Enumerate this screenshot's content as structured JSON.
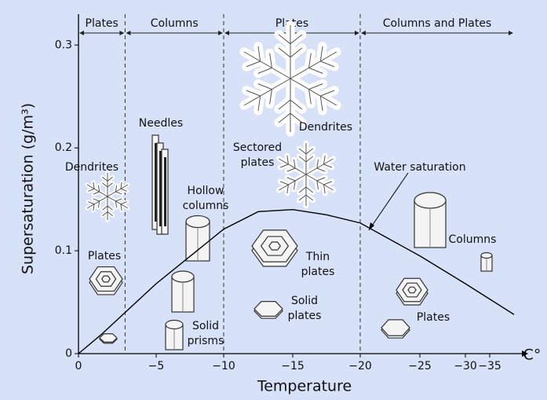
{
  "chart_data": {
    "type": "line",
    "xlabel": "Temperature",
    "xunit": "C°",
    "ylabel": "Supersaturation (g/m³)",
    "xlim": [
      0,
      -40
    ],
    "ylim": [
      0,
      0.33
    ],
    "xticks": [
      0,
      {
        "value": -5,
        "label": "−5"
      },
      {
        "value": -10,
        "label": "−10"
      },
      {
        "value": -15,
        "label": "−15"
      },
      {
        "value": -20,
        "label": "−20"
      },
      {
        "value": -25,
        "label": "−25"
      },
      {
        "value": -30,
        "label": "−30"
      },
      {
        "value": -35,
        "label": "−35"
      }
    ],
    "yticks": [
      0,
      0.1,
      0.2,
      0.3
    ],
    "regions": [
      {
        "label": "Plates",
        "from": 0,
        "to": -3
      },
      {
        "label": "Columns",
        "from": -3,
        "to": -10
      },
      {
        "label": "Plates",
        "from": -10,
        "to": -20
      },
      {
        "label": "Columns and Plates",
        "from": -20,
        "to": -40
      }
    ],
    "series": [
      {
        "name": "Water saturation",
        "color": "#000000",
        "x": [
          0,
          -1.5,
          -5,
          -10,
          -12.5,
          -15,
          -17.5,
          -20,
          -25,
          -30,
          -35,
          -40
        ],
        "values": [
          0,
          0.019,
          0.068,
          0.121,
          0.138,
          0.14,
          0.135,
          0.127,
          0.095,
          0.068,
          0.053,
          0.038
        ]
      }
    ],
    "annotations": [
      [
        "Needles"
      ],
      [
        "Dendrites"
      ],
      [
        "Hollow",
        "columns"
      ],
      [
        "Sectored",
        "plates"
      ],
      [
        "Dendrites"
      ],
      [
        "Plates"
      ],
      [
        "Thin",
        "plates"
      ],
      [
        "Solid",
        "plates"
      ],
      [
        "Solid",
        "prisms"
      ],
      [
        "Plates"
      ],
      [
        "Columns"
      ]
    ]
  }
}
